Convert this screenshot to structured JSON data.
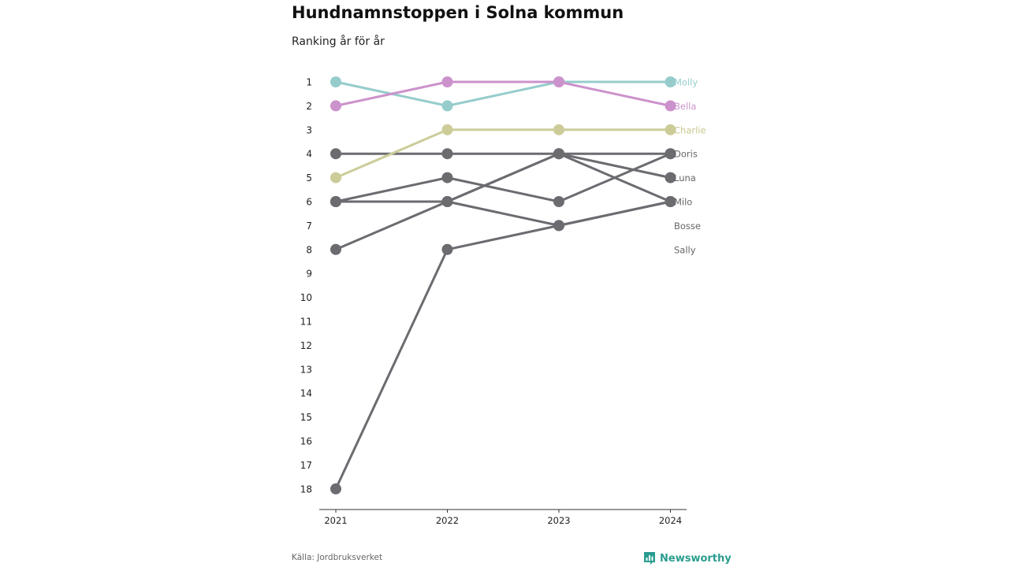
{
  "chart_data": {
    "type": "line",
    "title": "Hundnamnstoppen i Solna kommun",
    "subtitle": "Ranking år för år",
    "x": [
      "2021",
      "2022",
      "2023",
      "2024"
    ],
    "y_ticks": [
      "1",
      "2",
      "3",
      "4",
      "5",
      "6",
      "7",
      "8",
      "9",
      "10",
      "11",
      "12",
      "13",
      "14",
      "15",
      "16",
      "17",
      "18"
    ],
    "ylim": [
      1,
      18
    ],
    "y_reversed": true,
    "grid": false,
    "legend": "end-of-line labels",
    "series": [
      {
        "name": "Molly",
        "values": [
          1,
          2,
          1,
          1
        ],
        "color": "#96cccc"
      },
      {
        "name": "Bella",
        "values": [
          2,
          1,
          1,
          2
        ],
        "color": "#cc92cc"
      },
      {
        "name": "Charlie",
        "values": [
          5,
          3,
          3,
          3
        ],
        "color": "#cccc99"
      },
      {
        "name": "Doris",
        "values": [
          8,
          6,
          4,
          4
        ],
        "color": "#6b6b70"
      },
      {
        "name": "Luna",
        "values": [
          4,
          4,
          4,
          5
        ],
        "color": "#6b6b70"
      },
      {
        "name": "Milo",
        "values": [
          6,
          5,
          6,
          4
        ],
        "color": "#6b6b70"
      },
      {
        "name": "Bosse",
        "values": [
          6,
          6,
          4,
          6
        ],
        "color": "#6b6b70"
      },
      {
        "name": "Sally",
        "values": [
          18,
          8,
          7,
          6
        ],
        "color": "#6b6b70"
      },
      {
        "name": "",
        "values": [
          6,
          6,
          7,
          6
        ],
        "color": "#6b6b70"
      }
    ],
    "end_labels": [
      "Molly",
      "Bella",
      "Charlie",
      "Doris",
      "Luna",
      "Milo",
      "Bosse",
      "Sally"
    ],
    "end_label_colors": [
      "#96cccc",
      "#cc92cc",
      "#c8c890",
      "#666666",
      "#666666",
      "#666666",
      "#666666",
      "#666666"
    ]
  },
  "footer": {
    "source": "Källa: Jordbruksverket",
    "brand": "Newsworthy",
    "brand_color": "#2a9d8f",
    "brand_icon": "bar-chart-icon"
  }
}
